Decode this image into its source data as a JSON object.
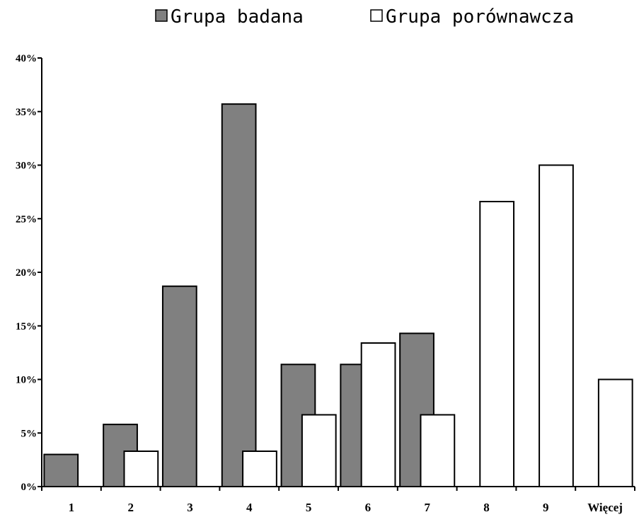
{
  "chart_data": {
    "type": "bar",
    "categories": [
      "1",
      "2",
      "3",
      "4",
      "5",
      "6",
      "7",
      "8",
      "9",
      "Więcej"
    ],
    "series": [
      {
        "name": "Grupa badana",
        "color": "#808080",
        "values": [
          3.0,
          5.8,
          18.7,
          35.7,
          11.4,
          11.4,
          14.3,
          0,
          0,
          0
        ]
      },
      {
        "name": "Grupa porównawcza",
        "color": "#ffffff",
        "values": [
          0,
          3.3,
          0,
          3.3,
          6.7,
          13.4,
          6.7,
          26.6,
          30.0,
          10.0
        ]
      }
    ],
    "title": "",
    "xlabel": "",
    "ylabel": "",
    "ylim": [
      0,
      40
    ],
    "yticks": [
      "0%",
      "5%",
      "10%",
      "15%",
      "20%",
      "25%",
      "30%",
      "35%",
      "40%"
    ],
    "legend_placement": "top-center",
    "grid": false
  }
}
